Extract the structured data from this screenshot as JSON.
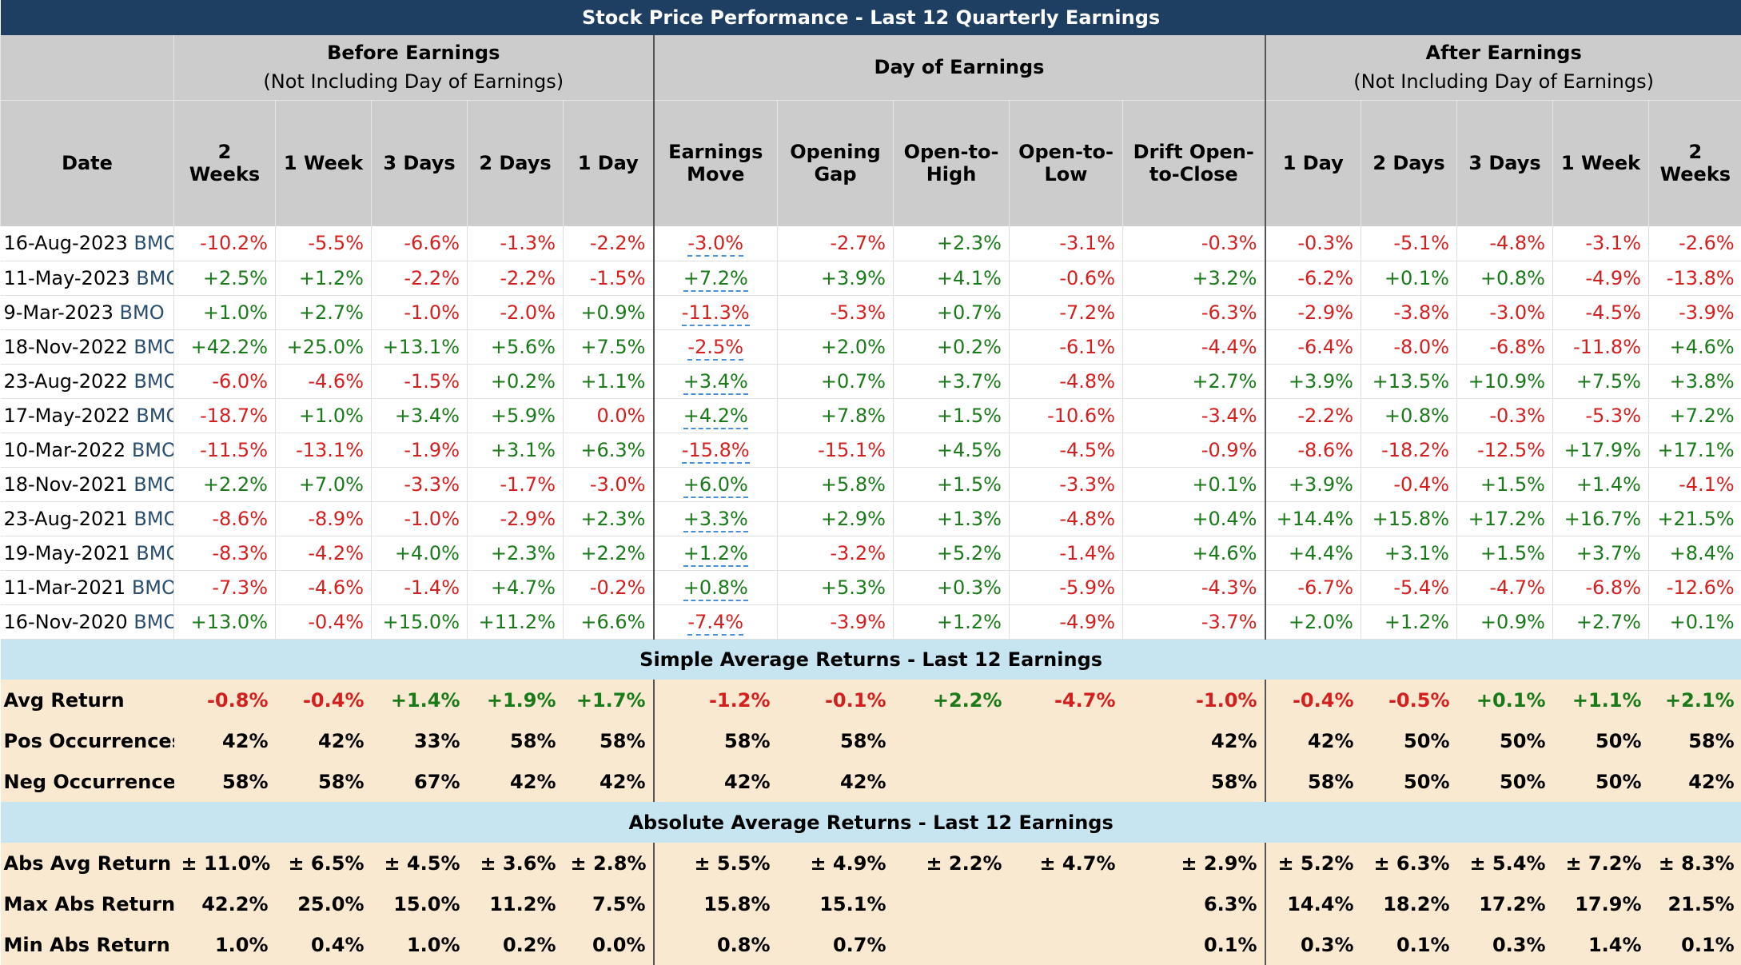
{
  "title": "Stock Price Performance - Last 12 Quarterly Earnings",
  "groups": {
    "before_title": "Before Earnings",
    "before_sub": "(Not Including Day of Earnings)",
    "day_title": "Day of Earnings",
    "after_title": "After Earnings",
    "after_sub": "(Not Including Day of Earnings)"
  },
  "columns": [
    "Date",
    "2 Weeks",
    "1 Week",
    "3 Days",
    "2 Days",
    "1 Day",
    "Earnings Move",
    "Opening Gap",
    "Open-to-High",
    "Open-to-Low",
    "Drift Open-to-Close",
    "1 Day",
    "2 Days",
    "3 Days",
    "1 Week",
    "2 Weeks"
  ],
  "rows": [
    {
      "date": "16-Aug-2023",
      "timing": "BMO",
      "values": [
        "-10.2%",
        "-5.5%",
        "-6.6%",
        "-1.3%",
        "-2.2%",
        "-3.0%",
        "-2.7%",
        "+2.3%",
        "-3.1%",
        "-0.3%",
        "-0.3%",
        "-5.1%",
        "-4.8%",
        "-3.1%",
        "-2.6%"
      ]
    },
    {
      "date": "11-May-2023",
      "timing": "BMO",
      "values": [
        "+2.5%",
        "+1.2%",
        "-2.2%",
        "-2.2%",
        "-1.5%",
        "+7.2%",
        "+3.9%",
        "+4.1%",
        "-0.6%",
        "+3.2%",
        "-6.2%",
        "+0.1%",
        "+0.8%",
        "-4.9%",
        "-13.8%"
      ]
    },
    {
      "date": "9-Mar-2023",
      "timing": "BMO",
      "values": [
        "+1.0%",
        "+2.7%",
        "-1.0%",
        "-2.0%",
        "+0.9%",
        "-11.3%",
        "-5.3%",
        "+0.7%",
        "-7.2%",
        "-6.3%",
        "-2.9%",
        "-3.8%",
        "-3.0%",
        "-4.5%",
        "-3.9%"
      ]
    },
    {
      "date": "18-Nov-2022",
      "timing": "BMO",
      "values": [
        "+42.2%",
        "+25.0%",
        "+13.1%",
        "+5.6%",
        "+7.5%",
        "-2.5%",
        "+2.0%",
        "+0.2%",
        "-6.1%",
        "-4.4%",
        "-6.4%",
        "-8.0%",
        "-6.8%",
        "-11.8%",
        "+4.6%"
      ]
    },
    {
      "date": "23-Aug-2022",
      "timing": "BMO",
      "values": [
        "-6.0%",
        "-4.6%",
        "-1.5%",
        "+0.2%",
        "+1.1%",
        "+3.4%",
        "+0.7%",
        "+3.7%",
        "-4.8%",
        "+2.7%",
        "+3.9%",
        "+13.5%",
        "+10.9%",
        "+7.5%",
        "+3.8%"
      ]
    },
    {
      "date": "17-May-2022",
      "timing": "BMO",
      "values": [
        "-18.7%",
        "+1.0%",
        "+3.4%",
        "+5.9%",
        "0.0%",
        "+4.2%",
        "+7.8%",
        "+1.5%",
        "-10.6%",
        "-3.4%",
        "-2.2%",
        "+0.8%",
        "-0.3%",
        "-5.3%",
        "+7.2%"
      ]
    },
    {
      "date": "10-Mar-2022",
      "timing": "BMO",
      "values": [
        "-11.5%",
        "-13.1%",
        "-1.9%",
        "+3.1%",
        "+6.3%",
        "-15.8%",
        "-15.1%",
        "+4.5%",
        "-4.5%",
        "-0.9%",
        "-8.6%",
        "-18.2%",
        "-12.5%",
        "+17.9%",
        "+17.1%"
      ]
    },
    {
      "date": "18-Nov-2021",
      "timing": "BMO",
      "values": [
        "+2.2%",
        "+7.0%",
        "-3.3%",
        "-1.7%",
        "-3.0%",
        "+6.0%",
        "+5.8%",
        "+1.5%",
        "-3.3%",
        "+0.1%",
        "+3.9%",
        "-0.4%",
        "+1.5%",
        "+1.4%",
        "-4.1%"
      ]
    },
    {
      "date": "23-Aug-2021",
      "timing": "BMO",
      "values": [
        "-8.6%",
        "-8.9%",
        "-1.0%",
        "-2.9%",
        "+2.3%",
        "+3.3%",
        "+2.9%",
        "+1.3%",
        "-4.8%",
        "+0.4%",
        "+14.4%",
        "+15.8%",
        "+17.2%",
        "+16.7%",
        "+21.5%"
      ]
    },
    {
      "date": "19-May-2021",
      "timing": "BMO",
      "values": [
        "-8.3%",
        "-4.2%",
        "+4.0%",
        "+2.3%",
        "+2.2%",
        "+1.2%",
        "-3.2%",
        "+5.2%",
        "-1.4%",
        "+4.6%",
        "+4.4%",
        "+3.1%",
        "+1.5%",
        "+3.7%",
        "+8.4%"
      ]
    },
    {
      "date": "11-Mar-2021",
      "timing": "BMO",
      "values": [
        "-7.3%",
        "-4.6%",
        "-1.4%",
        "+4.7%",
        "-0.2%",
        "+0.8%",
        "+5.3%",
        "+0.3%",
        "-5.9%",
        "-4.3%",
        "-6.7%",
        "-5.4%",
        "-4.7%",
        "-6.8%",
        "-12.6%"
      ]
    },
    {
      "date": "16-Nov-2020",
      "timing": "BMO",
      "values": [
        "+13.0%",
        "-0.4%",
        "+15.0%",
        "+11.2%",
        "+6.6%",
        "-7.4%",
        "-3.9%",
        "+1.2%",
        "-4.9%",
        "-3.7%",
        "+2.0%",
        "+1.2%",
        "+0.9%",
        "+2.7%",
        "+0.1%"
      ]
    }
  ],
  "simple_section": {
    "title": "Simple Average Returns - Last 12 Earnings",
    "rows": [
      {
        "label": "Avg Return",
        "values": [
          "-0.8%",
          "-0.4%",
          "+1.4%",
          "+1.9%",
          "+1.7%",
          "-1.2%",
          "-0.1%",
          "+2.2%",
          "-4.7%",
          "-1.0%",
          "-0.4%",
          "-0.5%",
          "+0.1%",
          "+1.1%",
          "+2.1%"
        ]
      },
      {
        "label": "Pos Occurrences",
        "values": [
          "42%",
          "42%",
          "33%",
          "58%",
          "58%",
          "58%",
          "58%",
          "",
          "",
          "42%",
          "42%",
          "50%",
          "50%",
          "50%",
          "58%"
        ]
      },
      {
        "label": "Neg Occurrences",
        "values": [
          "58%",
          "58%",
          "67%",
          "42%",
          "42%",
          "42%",
          "42%",
          "",
          "",
          "58%",
          "58%",
          "50%",
          "50%",
          "50%",
          "42%"
        ]
      }
    ]
  },
  "absolute_section": {
    "title": "Absolute Average Returns - Last 12 Earnings",
    "rows": [
      {
        "label": "Abs Avg Return",
        "values": [
          "± 11.0%",
          "± 6.5%",
          "± 4.5%",
          "± 3.6%",
          "± 2.8%",
          "± 5.5%",
          "± 4.9%",
          "± 2.2%",
          "± 4.7%",
          "± 2.9%",
          "± 5.2%",
          "± 6.3%",
          "± 5.4%",
          "± 7.2%",
          "± 8.3%"
        ]
      },
      {
        "label": "Max Abs Return",
        "values": [
          "42.2%",
          "25.0%",
          "15.0%",
          "11.2%",
          "7.5%",
          "15.8%",
          "15.1%",
          "",
          "",
          "6.3%",
          "14.4%",
          "18.2%",
          "17.2%",
          "17.9%",
          "21.5%"
        ]
      },
      {
        "label": "Min Abs Return",
        "values": [
          "1.0%",
          "0.4%",
          "1.0%",
          "0.2%",
          "0.0%",
          "0.8%",
          "0.7%",
          "",
          "",
          "0.1%",
          "0.3%",
          "0.1%",
          "0.3%",
          "1.4%",
          "0.1%"
        ]
      }
    ]
  },
  "colors": {
    "title_bg": "#1e3f62",
    "header_bg": "#cccccc",
    "section_bg": "#c7e4f1",
    "stat_bg": "#f8e9d0",
    "positive": "#1a7a1a",
    "negative": "#d41f1f",
    "ticker": "#2b4d6e"
  }
}
